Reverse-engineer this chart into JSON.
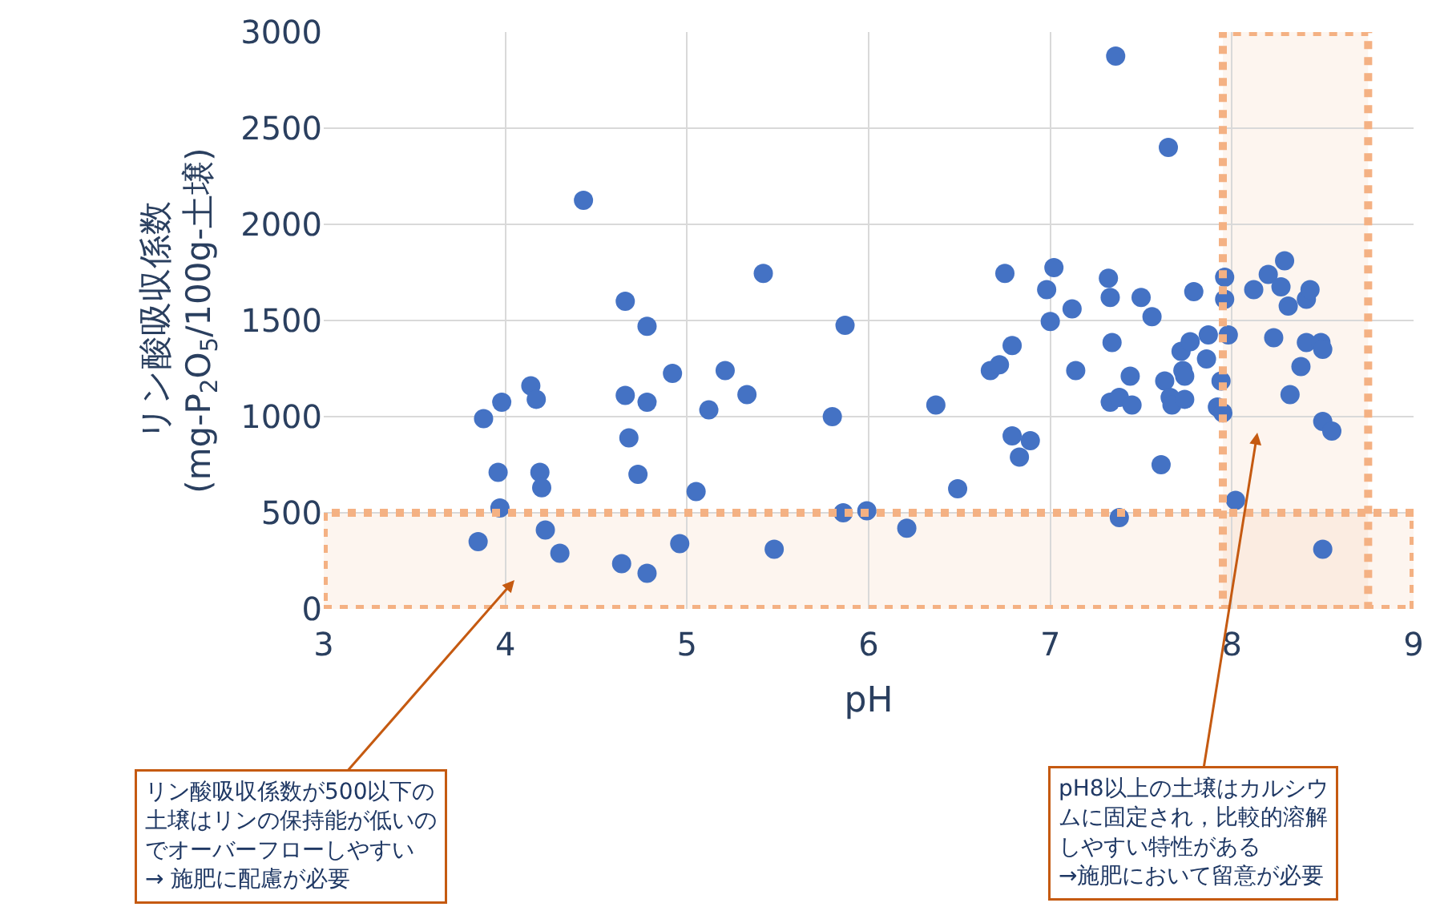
{
  "chart_data": {
    "type": "scatter",
    "xlabel": "pH",
    "ylabel": "リン酸吸収係数\n(mg-P$_{2}$O$_{5}$/100g-土壌)",
    "xlim": [
      3,
      9
    ],
    "xticks": [
      3,
      4,
      5,
      6,
      7,
      8,
      9
    ],
    "ylim": [
      0,
      3000
    ],
    "yticks": [
      0,
      500,
      1000,
      1500,
      2000,
      2500,
      3000
    ],
    "grid": true,
    "marker": "circle",
    "series": [
      {
        "color": "#4472c4",
        "x": [
          3.85,
          3.88,
          3.96,
          3.98,
          3.97,
          4.14,
          4.17,
          4.19,
          4.22,
          4.2,
          4.3,
          4.43,
          4.64,
          4.66,
          4.66,
          4.68,
          4.73,
          4.78,
          4.78,
          4.78,
          4.92,
          4.96,
          5.05,
          5.12,
          5.21,
          5.33,
          5.42,
          5.48,
          5.8,
          5.87,
          5.86,
          5.99,
          6.21,
          6.37,
          6.49,
          6.67,
          6.72,
          6.75,
          6.79,
          6.79,
          6.83,
          6.89,
          6.98,
          7.02,
          7.0,
          7.12,
          7.14,
          7.36,
          7.32,
          7.33,
          7.34,
          7.33,
          7.38,
          7.45,
          7.44,
          7.38,
          7.5,
          7.56,
          7.61,
          7.63,
          7.65,
          7.66,
          7.67,
          7.74,
          7.73,
          7.74,
          7.72,
          7.77,
          7.79,
          7.86,
          7.87,
          7.92,
          7.94,
          7.95,
          7.96,
          7.96,
          7.98,
          8.02,
          8.12,
          8.2,
          8.23,
          8.27,
          8.29,
          8.31,
          8.32,
          8.38,
          8.41,
          8.41,
          8.43,
          8.49,
          8.5,
          8.5,
          8.55,
          8.5
        ],
        "values": [
          350,
          990,
          710,
          1075,
          525,
          1160,
          1090,
          710,
          410,
          630,
          290,
          2125,
          235,
          1600,
          1110,
          890,
          700,
          185,
          1470,
          1075,
          1225,
          340,
          610,
          1035,
          1240,
          1115,
          1745,
          310,
          1000,
          1475,
          500,
          510,
          420,
          1060,
          625,
          1240,
          1270,
          1745,
          1370,
          900,
          790,
          875,
          1660,
          1775,
          1495,
          1560,
          1240,
          2875,
          1720,
          1620,
          1385,
          1075,
          1100,
          1060,
          1210,
          475,
          1620,
          1520,
          750,
          1185,
          2400,
          1100,
          1060,
          1090,
          1240,
          1210,
          1340,
          1390,
          1650,
          1300,
          1425,
          1050,
          1185,
          1020,
          1725,
          1610,
          1425,
          565,
          1660,
          1740,
          1410,
          1675,
          1810,
          1575,
          1115,
          1260,
          1385,
          1610,
          1660,
          1385,
          1350,
          975,
          925,
          310
        ]
      }
    ],
    "bands": [
      {
        "axis": "y",
        "from": 0,
        "to": 500,
        "color": "#f4b183",
        "label": "リン酸吸収係数が500以下の土壌はリンの保持能が低いのでオーバーフローしやすい\n→ 施肥に配慮が必要"
      },
      {
        "axis": "x",
        "from": 7.95,
        "to": 8.75,
        "color": "#f4b183",
        "label": "pH8以上の土壌はカルシウムに固定され，比較的溶解しやすい特性がある\n→施肥において留意が必要"
      }
    ]
  }
}
